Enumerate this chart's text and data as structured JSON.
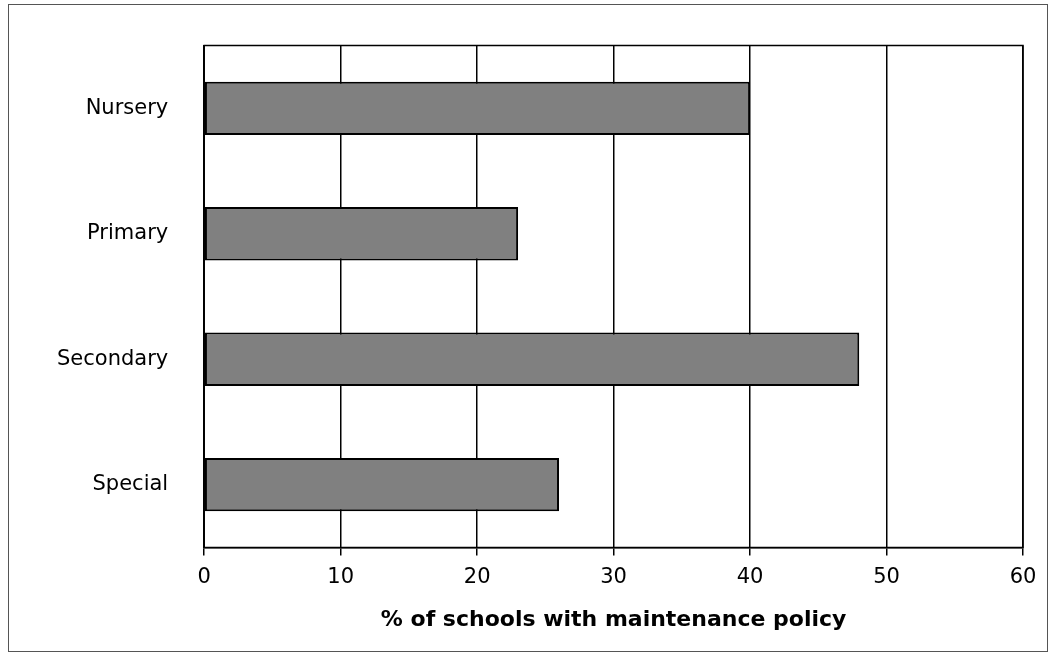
{
  "chart_data": {
    "type": "bar",
    "orientation": "horizontal",
    "xlabel": "% of schools with maintenance policy",
    "categories": [
      "Nursery",
      "Primary",
      "Secondary",
      "Special"
    ],
    "values": [
      40,
      23,
      48,
      26
    ],
    "color": "#808080",
    "xlim": [
      0,
      60
    ],
    "xticks": [
      0,
      10,
      20,
      30,
      40,
      50,
      60
    ],
    "grid": "x",
    "legend": false
  }
}
